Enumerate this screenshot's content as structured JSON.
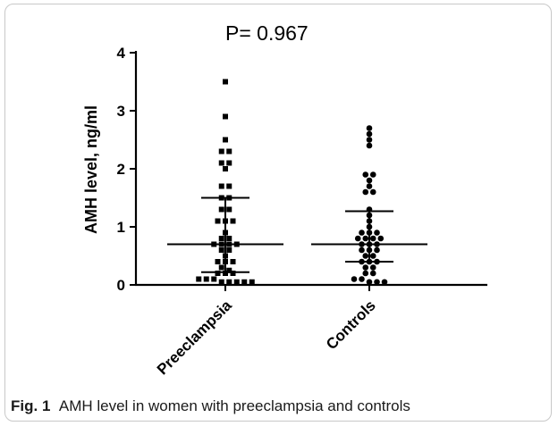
{
  "annotation": "P= 0.967",
  "caption": {
    "label": "Fig. 1",
    "text": "AMH level in women with preeclampsia and controls"
  },
  "chart_data": {
    "type": "scatter",
    "subtype": "dot-plot with median and interquartile range",
    "ylabel": "AMH level, ng/ml",
    "ylim": [
      0,
      4
    ],
    "yticks": [
      0,
      1,
      2,
      3,
      4
    ],
    "categories": [
      "Preeclampsia",
      "Controls"
    ],
    "series": [
      {
        "name": "Preeclampsia",
        "marker": "square",
        "median": 0.7,
        "q1": 0.22,
        "q3": 1.5,
        "values": [
          3.5,
          2.9,
          2.5,
          2.3,
          2.3,
          2.1,
          2.1,
          2.0,
          1.7,
          1.7,
          1.5,
          1.5,
          1.3,
          1.3,
          1.1,
          1.1,
          1.1,
          0.9,
          0.8,
          0.8,
          0.7,
          0.7,
          0.7,
          0.7,
          0.6,
          0.6,
          0.5,
          0.4,
          0.4,
          0.4,
          0.3,
          0.25,
          0.2,
          0.2,
          0.2,
          0.1,
          0.1,
          0.1,
          0.05,
          0.05,
          0.05,
          0.05,
          0.05
        ]
      },
      {
        "name": "Controls",
        "marker": "circle",
        "median": 0.7,
        "q1": 0.4,
        "q3": 1.27,
        "values": [
          2.7,
          2.6,
          2.5,
          2.4,
          1.9,
          1.9,
          1.8,
          1.7,
          1.6,
          1.6,
          1.3,
          1.2,
          1.1,
          1.0,
          0.9,
          0.9,
          0.9,
          0.8,
          0.8,
          0.8,
          0.8,
          0.7,
          0.7,
          0.7,
          0.6,
          0.6,
          0.6,
          0.5,
          0.5,
          0.4,
          0.4,
          0.4,
          0.3,
          0.3,
          0.2,
          0.2,
          0.1,
          0.1,
          0.05,
          0.05,
          0.05
        ]
      }
    ]
  }
}
